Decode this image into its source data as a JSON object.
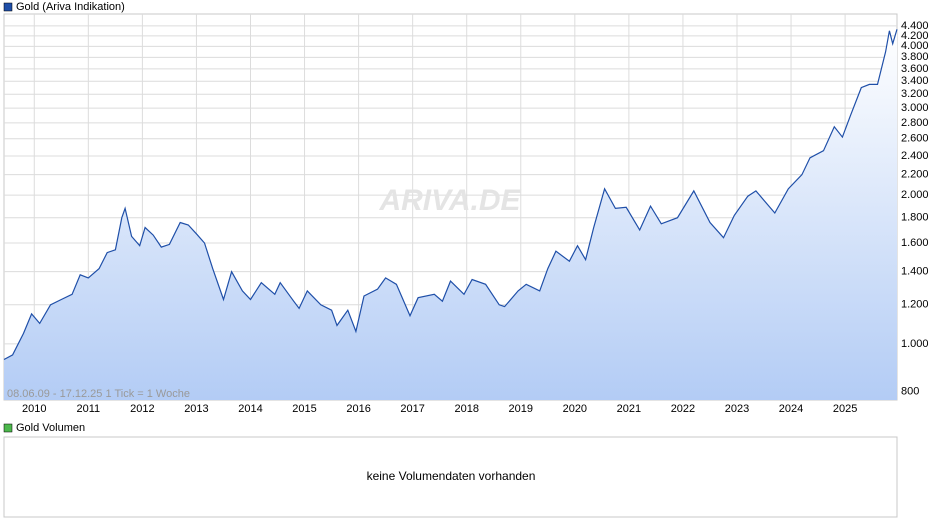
{
  "chart_data": {
    "type": "line",
    "title": "Gold (Ariva Indikation)",
    "annotation": "08.06.09 - 17.12.25   1 Tick = 1 Woche",
    "watermark": "ARIVA.DE",
    "log_scale": true,
    "grid": true,
    "x": [
      2009.44,
      2009.6,
      2009.8,
      2009.95,
      2010.1,
      2010.3,
      2010.5,
      2010.7,
      2010.85,
      2011.0,
      2011.2,
      2011.35,
      2011.5,
      2011.62,
      2011.68,
      2011.8,
      2011.95,
      2012.05,
      2012.2,
      2012.35,
      2012.5,
      2012.7,
      2012.85,
      2013.0,
      2013.15,
      2013.3,
      2013.5,
      2013.65,
      2013.85,
      2014.0,
      2014.2,
      2014.45,
      2014.55,
      2014.8,
      2014.9,
      2015.05,
      2015.3,
      2015.5,
      2015.6,
      2015.8,
      2015.95,
      2016.1,
      2016.35,
      2016.5,
      2016.7,
      2016.95,
      2017.1,
      2017.4,
      2017.55,
      2017.7,
      2017.95,
      2018.1,
      2018.35,
      2018.6,
      2018.7,
      2018.95,
      2019.1,
      2019.35,
      2019.5,
      2019.65,
      2019.9,
      2020.05,
      2020.2,
      2020.35,
      2020.55,
      2020.75,
      2020.95,
      2021.2,
      2021.4,
      2021.6,
      2021.9,
      2022.2,
      2022.5,
      2022.75,
      2022.95,
      2023.2,
      2023.35,
      2023.7,
      2023.95,
      2024.2,
      2024.35,
      2024.6,
      2024.8,
      2024.95,
      2025.1,
      2025.3,
      2025.45,
      2025.6,
      2025.75,
      2025.82,
      2025.88,
      2025.96
    ],
    "series": [
      {
        "name": "Gold (Ariva Indikation)",
        "color": "#1f4fa8",
        "values": [
          930,
          950,
          1050,
          1150,
          1100,
          1200,
          1230,
          1260,
          1380,
          1360,
          1420,
          1530,
          1550,
          1800,
          1880,
          1650,
          1580,
          1720,
          1660,
          1570,
          1590,
          1760,
          1740,
          1670,
          1600,
          1420,
          1230,
          1400,
          1280,
          1230,
          1330,
          1260,
          1330,
          1220,
          1180,
          1280,
          1200,
          1170,
          1090,
          1170,
          1060,
          1250,
          1290,
          1360,
          1320,
          1140,
          1240,
          1260,
          1220,
          1340,
          1260,
          1350,
          1320,
          1200,
          1190,
          1280,
          1320,
          1280,
          1420,
          1540,
          1470,
          1580,
          1480,
          1720,
          2060,
          1880,
          1890,
          1700,
          1900,
          1750,
          1800,
          2040,
          1760,
          1640,
          1820,
          1990,
          2040,
          1840,
          2060,
          2200,
          2380,
          2460,
          2750,
          2620,
          2900,
          3300,
          3350,
          3350,
          3900,
          4300,
          4050,
          4330
        ]
      }
    ],
    "xlim": [
      2009.44,
      2025.96
    ],
    "xticks": [
      2010,
      2011,
      2012,
      2013,
      2014,
      2015,
      2016,
      2017,
      2018,
      2019,
      2020,
      2021,
      2022,
      2023,
      2024,
      2025
    ],
    "ylim": [
      770,
      4650
    ],
    "yticks": [
      800,
      {
        "value": 1000,
        "label": "1.000"
      },
      {
        "value": 1200,
        "label": "1.200"
      },
      {
        "value": 1400,
        "label": "1.400"
      },
      {
        "value": 1600,
        "label": "1.600"
      },
      {
        "value": 1800,
        "label": "1.800"
      },
      {
        "value": 2000,
        "label": "2.000"
      },
      {
        "value": 2200,
        "label": "2.200"
      },
      {
        "value": 2400,
        "label": "2.400"
      },
      {
        "value": 2600,
        "label": "2.600"
      },
      {
        "value": 2800,
        "label": "2.800"
      },
      {
        "value": 3000,
        "label": "3.000"
      },
      {
        "value": 3200,
        "label": "3.200"
      },
      {
        "value": 3400,
        "label": "3.400"
      },
      {
        "value": 3600,
        "label": "3.600"
      },
      {
        "value": 3800,
        "label": "3.800"
      },
      {
        "value": 4000,
        "label": "4.000"
      },
      {
        "value": 4200,
        "label": "4.200"
      },
      {
        "value": 4400,
        "label": "4.400"
      }
    ]
  },
  "volume_panel": {
    "title": "Gold Volumen",
    "message": "keine Volumendaten vorhanden"
  }
}
